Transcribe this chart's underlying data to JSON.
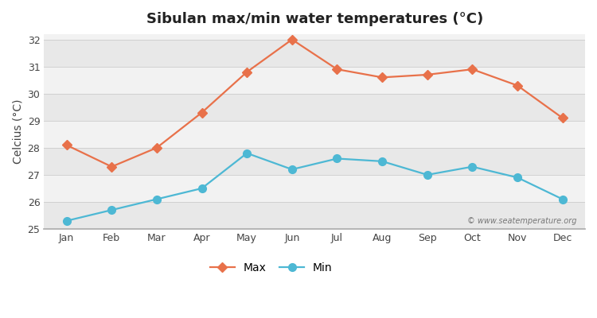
{
  "title": "Sibulan max/min water temperatures (°C)",
  "ylabel": "Celcius (°C)",
  "months": [
    "Jan",
    "Feb",
    "Mar",
    "Apr",
    "May",
    "Jun",
    "Jul",
    "Aug",
    "Sep",
    "Oct",
    "Nov",
    "Dec"
  ],
  "max_values": [
    28.1,
    27.3,
    28.0,
    29.3,
    30.8,
    32.0,
    30.9,
    30.6,
    30.7,
    30.9,
    30.3,
    29.1
  ],
  "min_values": [
    25.3,
    25.7,
    26.1,
    26.5,
    27.8,
    27.2,
    27.6,
    27.5,
    27.0,
    27.3,
    26.9,
    26.1
  ],
  "max_color": "#e8714a",
  "min_color": "#4db8d4",
  "ylim": [
    25.0,
    32.2
  ],
  "yticks": [
    25,
    26,
    27,
    28,
    29,
    30,
    31,
    32
  ],
  "band_light": "#f2f2f2",
  "band_dark": "#e8e8e8",
  "bg_color": "#ffffff",
  "legend_max": "Max",
  "legend_min": "Min",
  "watermark": "© www.seatemperature.org",
  "title_fontsize": 13,
  "label_fontsize": 10,
  "tick_fontsize": 9,
  "spine_color": "#aaaaaa"
}
